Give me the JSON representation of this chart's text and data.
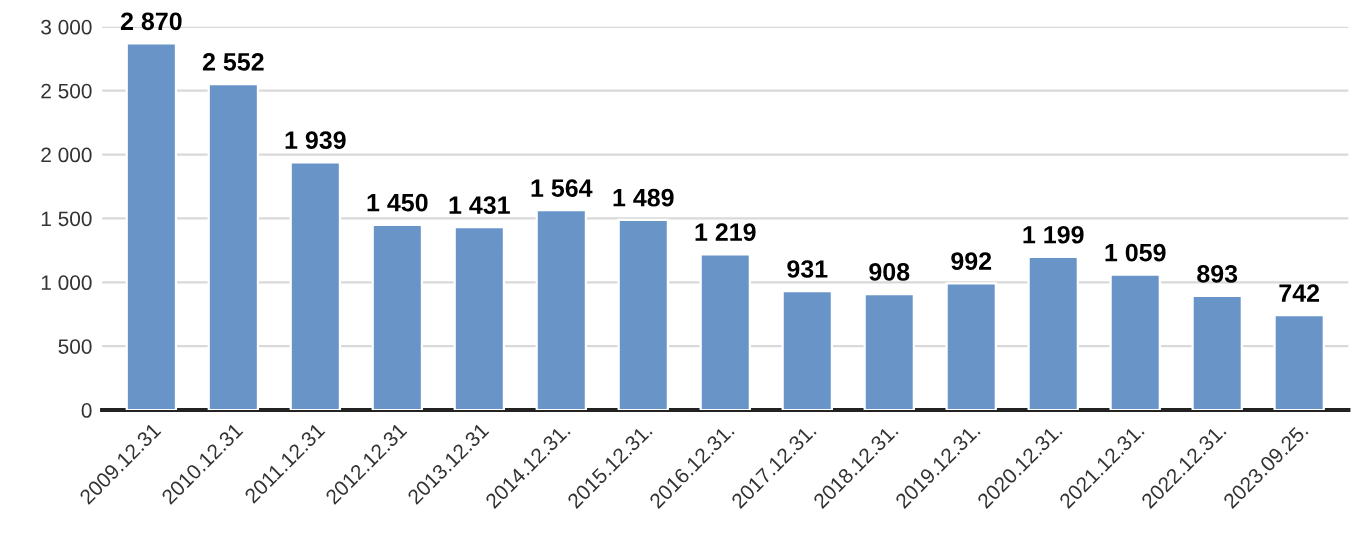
{
  "chart_data": {
    "type": "bar",
    "categories": [
      "2009.12.31",
      "2010.12.31",
      "2011.12.31",
      "2012.12.31",
      "2013.12.31",
      "2014.12.31.",
      "2015.12.31.",
      "2016.12.31.",
      "2017.12.31.",
      "2018.12.31.",
      "2019.12.31.",
      "2020.12.31.",
      "2021.12.31.",
      "2022.12.31.",
      "2023.09.25."
    ],
    "values": [
      2870,
      2552,
      1939,
      1450,
      1431,
      1564,
      1489,
      1219,
      931,
      908,
      992,
      1199,
      1059,
      893,
      742
    ],
    "value_labels": [
      "2 870",
      "2 552",
      "1 939",
      "1 450",
      "1 431",
      "1 564",
      "1 489",
      "1 219",
      "931",
      "908",
      "992",
      "1 199",
      "1 059",
      "893",
      "742"
    ],
    "color": "#6894c8",
    "ylim": [
      0,
      3000
    ],
    "yticks": [
      {
        "value": 0,
        "label": "0"
      },
      {
        "value": 500,
        "label": "500"
      },
      {
        "value": 1000,
        "label": "1 000"
      },
      {
        "value": 1500,
        "label": "1 500"
      },
      {
        "value": 2000,
        "label": "2 000"
      },
      {
        "value": 2500,
        "label": "2 500"
      },
      {
        "value": 3000,
        "label": "3 000"
      }
    ],
    "grid": "y"
  }
}
